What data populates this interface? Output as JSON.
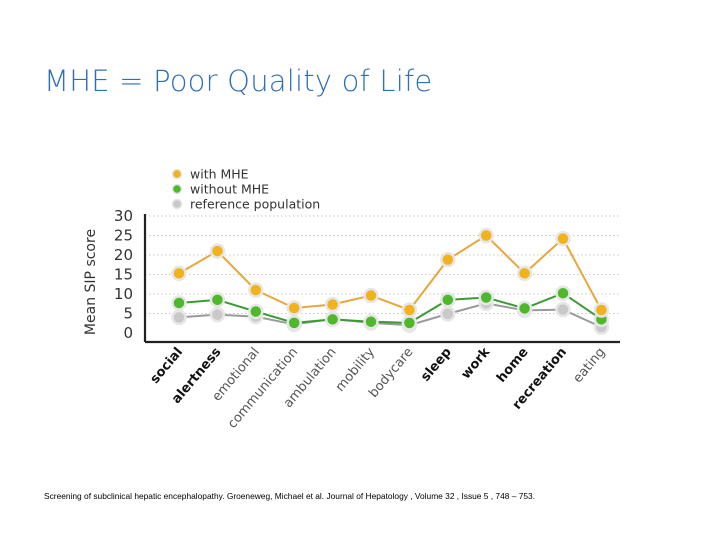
{
  "slide": {
    "title": "MHE = Poor Quality of Life",
    "citation": "Screening of subclinical hepatic encephalopathy. Groeneweg, Michael et al. Journal of Hepatology , Volume 32 , Issue 5 , 748 – 753."
  },
  "chart_data": {
    "type": "line",
    "title": "",
    "xlabel": "",
    "ylabel": "Mean SIP score",
    "ylim": [
      0,
      30
    ],
    "yticks": [
      0,
      5,
      10,
      15,
      20,
      25,
      30
    ],
    "grid": true,
    "legend": "top-left",
    "categories": [
      "social",
      "alertness",
      "emotional",
      "communication",
      "ambulation",
      "mobility",
      "bodycare",
      "sleep",
      "work",
      "home",
      "recreation",
      "eating"
    ],
    "bold_categories": [
      "social",
      "alertness",
      "sleep",
      "work",
      "home",
      "recreation"
    ],
    "series": [
      {
        "name": "with MHE",
        "color": "#f2b21b",
        "line_color": "#e9a63a",
        "values": [
          15.3,
          21,
          11,
          6.4,
          7.3,
          9.6,
          5.9,
          18.8,
          25,
          15.3,
          24.2,
          5.9
        ]
      },
      {
        "name": "without MHE",
        "color": "#4cb82a",
        "line_color": "#3a9b34",
        "values": [
          7.7,
          8.5,
          5.5,
          2.6,
          3.5,
          2.9,
          2.6,
          8.5,
          9.1,
          6.3,
          10.2,
          3.5
        ]
      },
      {
        "name": "reference population",
        "color": "#c9c9c9",
        "line_color": "#9a9a9a",
        "values": [
          4,
          4.7,
          4.2,
          2.2,
          3.6,
          2.6,
          2,
          4.9,
          7.6,
          5.8,
          6,
          1.5
        ]
      }
    ]
  }
}
